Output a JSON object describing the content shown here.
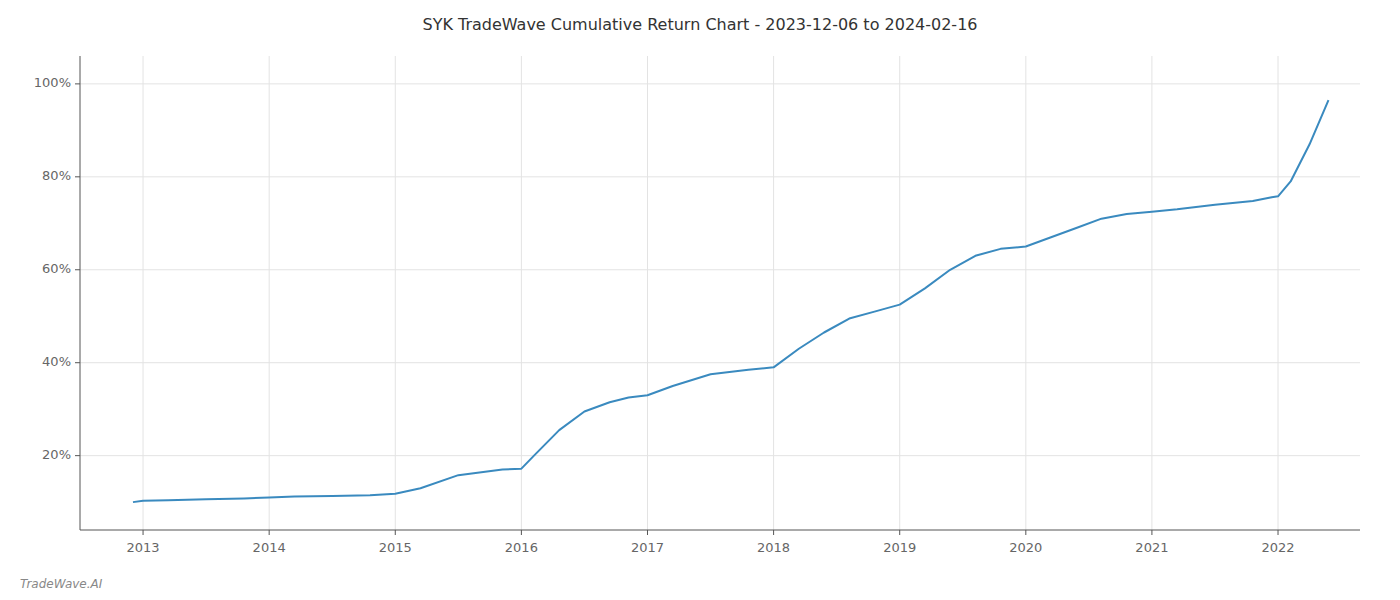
{
  "chart_data": {
    "type": "line",
    "title": "SYK TradeWave Cumulative Return Chart - 2023-12-06 to 2024-02-16",
    "annotations": [
      "TradeWave.AI"
    ],
    "x": [
      2012.92,
      2013.0,
      2013.2,
      2013.5,
      2013.8,
      2014.0,
      2014.2,
      2014.5,
      2014.8,
      2015.0,
      2015.2,
      2015.5,
      2015.85,
      2016.0,
      2016.1,
      2016.3,
      2016.5,
      2016.7,
      2016.85,
      2017.0,
      2017.2,
      2017.5,
      2017.8,
      2018.0,
      2018.2,
      2018.4,
      2018.6,
      2018.8,
      2019.0,
      2019.2,
      2019.4,
      2019.6,
      2019.8,
      2020.0,
      2020.2,
      2020.4,
      2020.6,
      2020.8,
      2021.0,
      2021.2,
      2021.5,
      2021.8,
      2021.95,
      2022.0,
      2022.1,
      2022.25,
      2022.4
    ],
    "values": [
      0.1,
      0.103,
      0.104,
      0.106,
      0.108,
      0.11,
      0.112,
      0.113,
      0.115,
      0.118,
      0.13,
      0.158,
      0.17,
      0.172,
      0.2,
      0.255,
      0.295,
      0.315,
      0.325,
      0.33,
      0.35,
      0.375,
      0.385,
      0.39,
      0.43,
      0.465,
      0.495,
      0.51,
      0.525,
      0.56,
      0.6,
      0.63,
      0.645,
      0.65,
      0.67,
      0.69,
      0.71,
      0.72,
      0.725,
      0.73,
      0.74,
      0.748,
      0.756,
      0.758,
      0.79,
      0.87,
      0.965
    ],
    "color": "#3a8abf",
    "xlim": [
      2012.5,
      2022.65
    ],
    "ylim": [
      0.04,
      1.06
    ],
    "xticks": [
      2013,
      2014,
      2015,
      2016,
      2017,
      2018,
      2019,
      2020,
      2021,
      2022
    ],
    "yticks": [
      {
        "value": 0.2,
        "label": "20%"
      },
      {
        "value": 0.4,
        "label": "40%"
      },
      {
        "value": 0.6,
        "label": "60%"
      },
      {
        "value": 0.8,
        "label": "80%"
      },
      {
        "value": 1.0,
        "label": "100%"
      }
    ],
    "grid": true
  }
}
